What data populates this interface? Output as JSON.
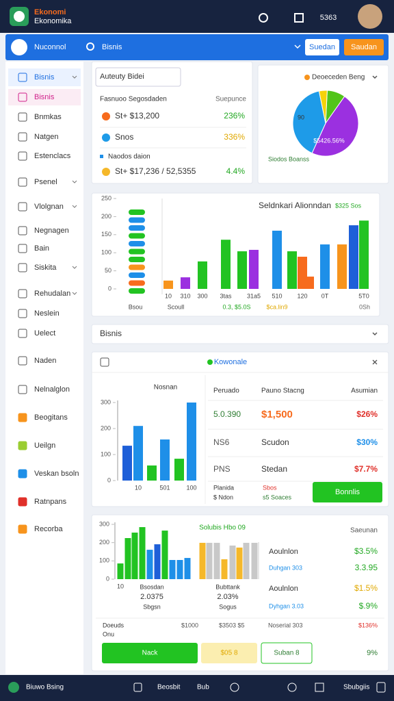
{
  "header": {
    "brand": "Ekonomi",
    "brand_sub": "Ekonomika",
    "badge": "5363"
  },
  "toolbar": {
    "user": "Nuconnol",
    "search": "Bisnis",
    "button_1": "Suedan",
    "button_2": "Saudan"
  },
  "sidebar": [
    "Bisnis",
    "Bisnis",
    "Bnmkas",
    "Natgen",
    "Estenclacs",
    "Psenel",
    "Vlolgnan",
    "Negnagen",
    "Bain",
    "Siskita",
    "Rehudalan",
    "Neslein",
    "Uelect",
    "Naden",
    "Nelnalglon",
    "Beogitans",
    "Ueilgn",
    "Veskan bsoln",
    "Ratnpans",
    "Recorba"
  ],
  "summary": {
    "input": "Auteuty Bidei",
    "heading": "Fasnuoo Segosdaden",
    "heading_right": "Suepunce",
    "subheading": "Naodos daion",
    "rows": [
      {
        "label": "St+ $13,200",
        "change": "236%"
      },
      {
        "label": "Snos",
        "change": "336%"
      },
      {
        "label": "St+ $17,236 / 52,5355",
        "change": "4.4%"
      }
    ]
  },
  "dropdown": "Bisnis",
  "panel": {
    "title": "Kowonale",
    "headers": [
      "Peruado",
      "Pauno Stacng",
      "Asumian"
    ],
    "rows": [
      [
        "5.0.390",
        "$1,500",
        "$26%"
      ],
      [
        "NS6",
        "Scudon",
        "$30%"
      ],
      [
        "PNS",
        "Stedan",
        "$7.7%"
      ]
    ],
    "footer": [
      "Planida",
      "$ Ndon",
      "Sbos",
      "s5 Soaces"
    ],
    "button": "Bonnlis"
  },
  "panel_2": {
    "title": "Solubis Hbo 09",
    "side_title": "Saeunan",
    "rows": [
      [
        "Aoulnlon",
        "$3.5%"
      ],
      [
        "Duhgan 303",
        "3.3.95"
      ],
      [
        "Aoulnlon",
        "$1.5%"
      ],
      [
        "Dyhgan 3.03",
        "$.9%"
      ]
    ],
    "chart_labels": [
      "Bsosdan",
      "2.0375",
      "Sbgsn",
      "Bubttank",
      "2.03%",
      "Sogus"
    ],
    "bottom": [
      "Doeuds",
      "Onu",
      "$1000",
      "$3503 $5",
      "Noserial 303",
      "$136%"
    ],
    "buttons": [
      "Nack",
      "$05 8",
      "Suban 8"
    ],
    "bottom_value": "9%"
  },
  "footer_nav": [
    "Biuwo Bsing",
    "Beosbit",
    "Bub",
    "Sbubgiis"
  ],
  "chart_data": [
    {
      "type": "pie",
      "title": "Deoeceden Beng",
      "values": [
        9,
        47,
        40,
        4
      ],
      "colors": [
        "#52c41a",
        "#9b30e0",
        "#1e9be8",
        "#f5d20a"
      ],
      "annotations": [
        "90",
        "$5426.56%",
        "Siodos Boanss"
      ]
    },
    {
      "type": "bar",
      "title": "Seldnkari Alionndan",
      "categories": [
        "10",
        "310",
        "300",
        "3tas",
        null,
        "31a5",
        "510",
        null,
        "120",
        null,
        "0T",
        null,
        null,
        "5T0"
      ],
      "values": [
        23,
        32,
        76,
        136,
        104,
        108,
        161,
        104,
        89,
        34,
        123,
        123,
        176,
        189
      ],
      "colors": [
        "#f7941d",
        "#9b30e0",
        "#22c322",
        "#22c322",
        "#22c322",
        "#9b30e0",
        "#1e8fe8",
        "#22c322",
        "#f76b1d",
        "#f76b1d",
        "#1e8fe8",
        "#f7941d",
        "#1e5fd8",
        "#22c322"
      ],
      "ylim": [
        0,
        250
      ],
      "yticks": [
        0,
        50,
        100,
        150,
        200,
        250
      ],
      "grid": false,
      "annotations": [
        "$325 Sos",
        "Bsou",
        "Scoull",
        "0.3, $5.0S",
        "$ca.lin9",
        "0Sh"
      ]
    },
    {
      "type": "bar",
      "title": "Nosnan",
      "categories": [
        null,
        "10",
        null,
        "501",
        null,
        "100"
      ],
      "values": [
        134,
        210,
        58,
        158,
        84,
        300
      ],
      "colors": [
        "#1e5fd8",
        "#1e8fe8",
        "#22c322",
        "#1e8fe8",
        "#22c322",
        "#1e8fe8"
      ],
      "ylim": [
        0,
        300
      ],
      "yticks": [
        0,
        100,
        200,
        300
      ],
      "grid": false
    },
    {
      "type": "bar",
      "categories": [
        "10",
        null,
        null,
        null,
        null,
        null,
        null,
        null,
        null,
        null
      ],
      "values": [
        86,
        225,
        255,
        285,
        161,
        191,
        266,
        105,
        105,
        116
      ],
      "colors": [
        "#22c322",
        "#22c322",
        "#22c322",
        "#22c322",
        "#1e8fe8",
        "#1e5fd8",
        "#22c322",
        "#1e8fe8",
        "#1e8fe8",
        "#1e8fe8"
      ],
      "ylim": [
        0,
        300
      ],
      "yticks": [
        0,
        100,
        200,
        300
      ],
      "grid": false
    },
    {
      "type": "bar",
      "values": [
        199,
        199,
        199,
        109,
        184,
        173,
        199,
        199
      ],
      "colors": [
        "#f5b82a",
        "#c8c8c8",
        "#c8c8c8",
        "#f5b82a",
        "#c8c8c8",
        "#f5b82a",
        "#c8c8c8",
        "#c8c8c8"
      ],
      "ylim": [
        0,
        300
      ],
      "grid": false
    }
  ]
}
